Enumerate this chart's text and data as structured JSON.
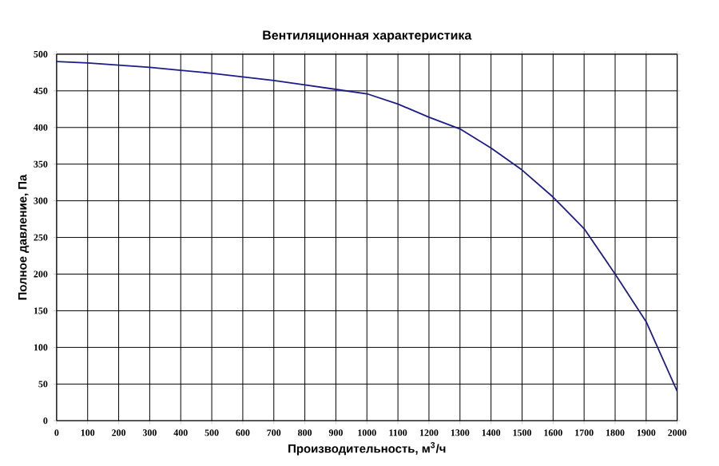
{
  "chart_data": {
    "type": "line",
    "title": "Вентиляционная характеристика",
    "xlabel": "Производительность, м$^{3}$/ч",
    "ylabel": "Полное  давление, Па",
    "x": [
      0,
      100,
      200,
      300,
      400,
      500,
      600,
      700,
      800,
      900,
      1000,
      1100,
      1200,
      1300,
      1400,
      1500,
      1600,
      1700,
      1800,
      1900,
      2000
    ],
    "series": [
      {
        "color": "#1c1c8c",
        "values": [
          490,
          488,
          485,
          482,
          478,
          474,
          469,
          464,
          458,
          452,
          446,
          432,
          414,
          398,
          372,
          342,
          305,
          262,
          200,
          135,
          40
        ]
      }
    ],
    "xlim": [
      0,
      2000
    ],
    "ylim": [
      0,
      500
    ],
    "xticks": [
      0,
      100,
      200,
      300,
      400,
      500,
      600,
      700,
      800,
      900,
      1000,
      1100,
      1200,
      1300,
      1400,
      1500,
      1600,
      1700,
      1800,
      1900,
      2000
    ],
    "yticks": [
      0,
      50,
      100,
      150,
      200,
      250,
      300,
      350,
      400,
      450,
      500
    ],
    "grid": true,
    "marker": "none",
    "line_style": "solid"
  }
}
